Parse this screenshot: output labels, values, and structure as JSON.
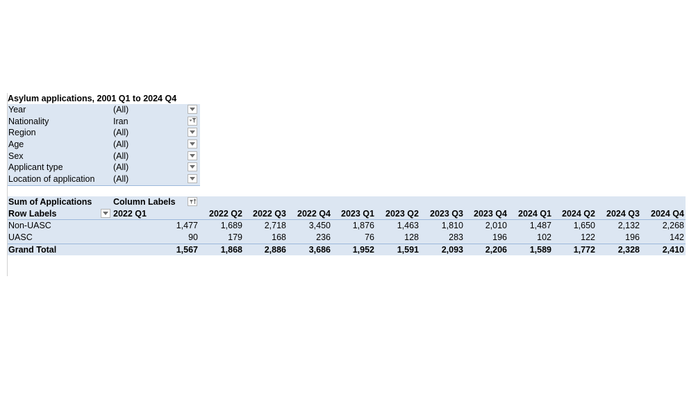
{
  "filters": {
    "title": "Asylum applications, 2001 Q1 to 2024 Q4",
    "items": [
      {
        "label": "Year",
        "value": "(All)",
        "filtered": false
      },
      {
        "label": "Nationality",
        "value": "Iran",
        "filtered": true
      },
      {
        "label": "Region",
        "value": "(All)",
        "filtered": false
      },
      {
        "label": "Age",
        "value": "(All)",
        "filtered": false
      },
      {
        "label": "Sex",
        "value": "(All)",
        "filtered": false
      },
      {
        "label": "Applicant type",
        "value": "(All)",
        "filtered": false
      },
      {
        "label": "Location of application",
        "value": "(All)",
        "filtered": false
      }
    ]
  },
  "pivot": {
    "value_field": "Sum of Applications",
    "column_labels_caption": "Column Labels",
    "row_labels_caption": "Row Labels",
    "columns": [
      "2022 Q1",
      "2022 Q2",
      "2022 Q3",
      "2022 Q4",
      "2023 Q1",
      "2023 Q2",
      "2023 Q3",
      "2023 Q4",
      "2024 Q1",
      "2024 Q2",
      "2024 Q3",
      "2024 Q4"
    ],
    "rows": [
      {
        "label": "Non-UASC",
        "values": [
          "1,477",
          "1,689",
          "2,718",
          "3,450",
          "1,876",
          "1,463",
          "1,810",
          "2,010",
          "1,487",
          "1,650",
          "2,132",
          "2,268"
        ]
      },
      {
        "label": "UASC",
        "values": [
          "90",
          "179",
          "168",
          "236",
          "76",
          "128",
          "283",
          "196",
          "102",
          "122",
          "196",
          "142"
        ]
      }
    ],
    "grand_total": {
      "label": "Grand Total",
      "values": [
        "1,567",
        "1,868",
        "2,886",
        "3,686",
        "1,952",
        "1,591",
        "2,093",
        "2,206",
        "1,589",
        "1,772",
        "2,328",
        "2,410"
      ]
    }
  }
}
